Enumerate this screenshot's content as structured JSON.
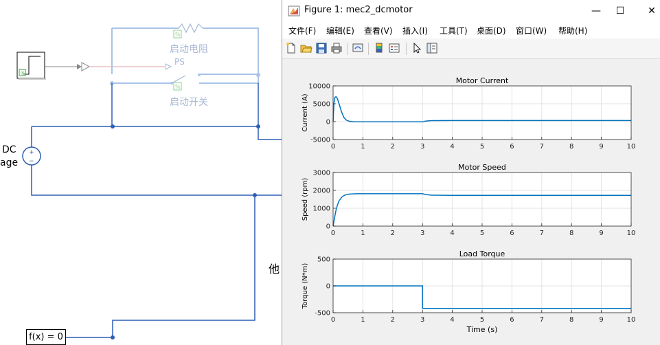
{
  "model": {
    "labels": {
      "start_resistor": "启动电阻",
      "ps": "PS",
      "start_switch": "启动开关",
      "dc": "DC",
      "voltage_partial": "age",
      "partial_chinese": "他",
      "fx": "f(x) = 0"
    }
  },
  "figure_window": {
    "title": "Figure 1: mec2_dcmotor",
    "controls": {
      "minimize": "—",
      "maximize": "☐",
      "close": "✕"
    },
    "menu": [
      "文件(F)",
      "编辑(E)",
      "查看(V)",
      "插入(I)",
      "工具(T)",
      "桌面(D)",
      "窗口(W)",
      "帮助(H)"
    ],
    "toolbar_icons": [
      "new-figure-icon",
      "open-file-icon",
      "save-icon",
      "print-icon",
      "link-icon",
      "colorbar-icon",
      "legend-icon",
      "pointer-icon",
      "property-editor-icon"
    ]
  },
  "chart_data": [
    {
      "type": "line",
      "title": "Motor Current",
      "xlabel": "",
      "ylabel": "Current (A)",
      "xlim": [
        0,
        10
      ],
      "ylim": [
        -5000,
        10000
      ],
      "xticks": [
        0,
        1,
        2,
        3,
        4,
        5,
        6,
        7,
        8,
        9,
        10
      ],
      "yticks": [
        -5000,
        0,
        5000,
        10000
      ],
      "grid": true,
      "color": "#0072bd",
      "x": [
        0,
        0.03,
        0.06,
        0.1,
        0.14,
        0.2,
        0.28,
        0.36,
        0.45,
        0.55,
        0.7,
        1.0,
        2.0,
        3.0,
        3.1,
        3.3,
        4.0,
        6.0,
        8.0,
        10.0
      ],
      "y": [
        0,
        5200,
        6800,
        7000,
        6500,
        5000,
        2800,
        1200,
        400,
        100,
        -30,
        -50,
        -50,
        -50,
        150,
        280,
        300,
        300,
        300,
        300
      ]
    },
    {
      "type": "line",
      "title": "Motor Speed",
      "xlabel": "",
      "ylabel": "Speed (rpm)",
      "xlim": [
        0,
        10
      ],
      "ylim": [
        0,
        3000
      ],
      "xticks": [
        0,
        1,
        2,
        3,
        4,
        5,
        6,
        7,
        8,
        9,
        10
      ],
      "yticks": [
        0,
        1000,
        2000,
        3000
      ],
      "grid": true,
      "color": "#0072bd",
      "x": [
        0,
        0.05,
        0.1,
        0.15,
        0.2,
        0.3,
        0.4,
        0.5,
        0.6,
        0.8,
        1.0,
        2.0,
        3.0,
        3.1,
        3.3,
        4.0,
        6.0,
        8.0,
        10.0
      ],
      "y": [
        0,
        480,
        900,
        1200,
        1420,
        1640,
        1740,
        1780,
        1800,
        1810,
        1810,
        1810,
        1810,
        1770,
        1730,
        1725,
        1725,
        1725,
        1725
      ]
    },
    {
      "type": "line",
      "title": "Load Torque",
      "xlabel": "Time (s)",
      "ylabel": "Torque (N*m)",
      "xlim": [
        0,
        10
      ],
      "ylim": [
        -500,
        500
      ],
      "xticks": [
        0,
        1,
        2,
        3,
        4,
        5,
        6,
        7,
        8,
        9,
        10
      ],
      "yticks": [
        -500,
        0,
        500
      ],
      "grid": true,
      "color": "#0072bd",
      "x": [
        0,
        3.0,
        3.0,
        10.0
      ],
      "y": [
        0,
        0,
        -420,
        -420
      ]
    }
  ]
}
